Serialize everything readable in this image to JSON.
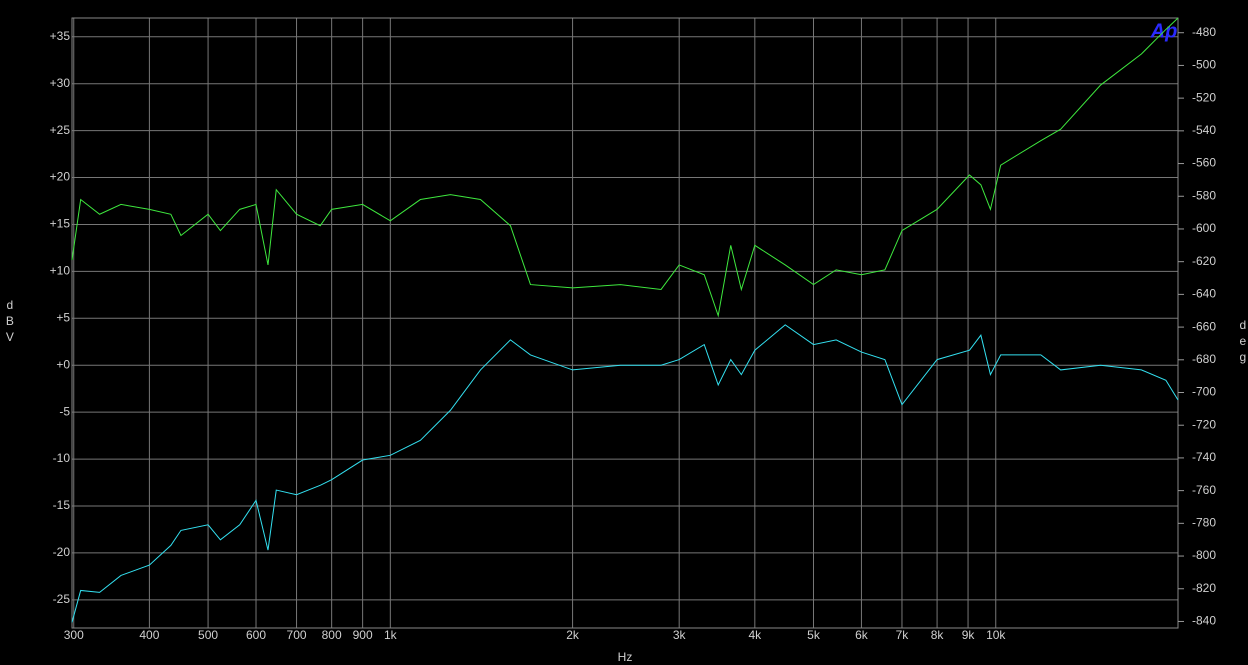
{
  "chart_data": {
    "type": "line",
    "x_label": "Hz",
    "y_label": "dBV",
    "y2_label": "deg",
    "logo": "Ap",
    "log_x": true,
    "grid": true,
    "xlim": [
      298,
      20000
    ],
    "xticks": [
      300,
      400,
      500,
      600,
      700,
      800,
      900,
      {
        "value": 1000,
        "label": "1k"
      },
      {
        "value": 2000,
        "label": "2k"
      },
      {
        "value": 3000,
        "label": "3k"
      },
      {
        "value": 4000,
        "label": "4k"
      },
      {
        "value": 5000,
        "label": "5k"
      },
      {
        "value": 6000,
        "label": "6k"
      },
      {
        "value": 7000,
        "label": "7k"
      },
      {
        "value": 8000,
        "label": "8k"
      },
      {
        "value": 9000,
        "label": "9k"
      },
      {
        "value": 10000,
        "label": "10k"
      }
    ],
    "ylim": [
      -28,
      37
    ],
    "yticks": [
      {
        "value": 35,
        "label": "+35"
      },
      {
        "value": 30,
        "label": "+30"
      },
      {
        "value": 25,
        "label": "+25"
      },
      {
        "value": 20,
        "label": "+20"
      },
      {
        "value": 15,
        "label": "+15"
      },
      {
        "value": 10,
        "label": "+10"
      },
      {
        "value": 5,
        "label": "+5"
      },
      {
        "value": 0,
        "label": "+0"
      },
      -5,
      -10,
      -15,
      -20,
      -25
    ],
    "y2lim": [
      -844,
      -471
    ],
    "y2ticks": [
      -480,
      -500,
      -520,
      -540,
      -560,
      -580,
      -600,
      -620,
      -640,
      -660,
      -680,
      -700,
      -720,
      -740,
      -760,
      -780,
      -800,
      -820,
      -840
    ],
    "x": [
      298,
      308,
      331,
      359,
      400,
      434,
      451,
      500,
      524,
      564,
      600,
      628,
      648,
      700,
      766,
      800,
      900,
      1000,
      1121,
      1257,
      1409,
      1579,
      1704,
      2000,
      2400,
      2800,
      3000,
      3300,
      3480,
      3650,
      3800,
      4000,
      4490,
      5000,
      5450,
      6000,
      6560,
      7000,
      8000,
      9050,
      9450,
      9800,
      10190,
      11870,
      12800,
      14900,
      17400,
      19100,
      20000
    ],
    "series": [
      {
        "color": "#33e0f0",
        "values": [
          -27.4,
          -24,
          -24.2,
          -22.4,
          -21.3,
          -19.2,
          -17.6,
          -17,
          -18.6,
          -17,
          -14.4,
          -19.7,
          -13.3,
          -13.8,
          -12.8,
          -12.2,
          -10.1,
          -9.6,
          -8,
          -4.8,
          -0.5,
          2.7,
          1.1,
          -0.5,
          0,
          0,
          0.6,
          2.2,
          -2.1,
          0.6,
          -1,
          1.6,
          4.3,
          2.2,
          2.7,
          1.4,
          0.6,
          -4.2,
          0.6,
          1.6,
          3.2,
          -1,
          1.1,
          1.1,
          -0.5,
          0,
          -0.5,
          -1.6,
          -3.7
        ]
      },
      {
        "color": "#3ee83e",
        "axis": "y2",
        "values": [
          -619,
          -582,
          -591,
          -585,
          -588,
          -591,
          -604,
          -591,
          -601,
          -588,
          -585,
          -622,
          -576,
          -591,
          -598,
          -588,
          -585,
          -595,
          -582,
          -579,
          -582,
          -598,
          -634,
          -636,
          -634,
          -637,
          -622,
          -628,
          -653,
          -610,
          -637,
          -610,
          -622,
          -634,
          -625,
          -628,
          -625,
          -601,
          -588,
          -567,
          -573,
          -588,
          -561,
          -546,
          -539,
          -512,
          -493,
          -478,
          -471
        ]
      }
    ]
  }
}
